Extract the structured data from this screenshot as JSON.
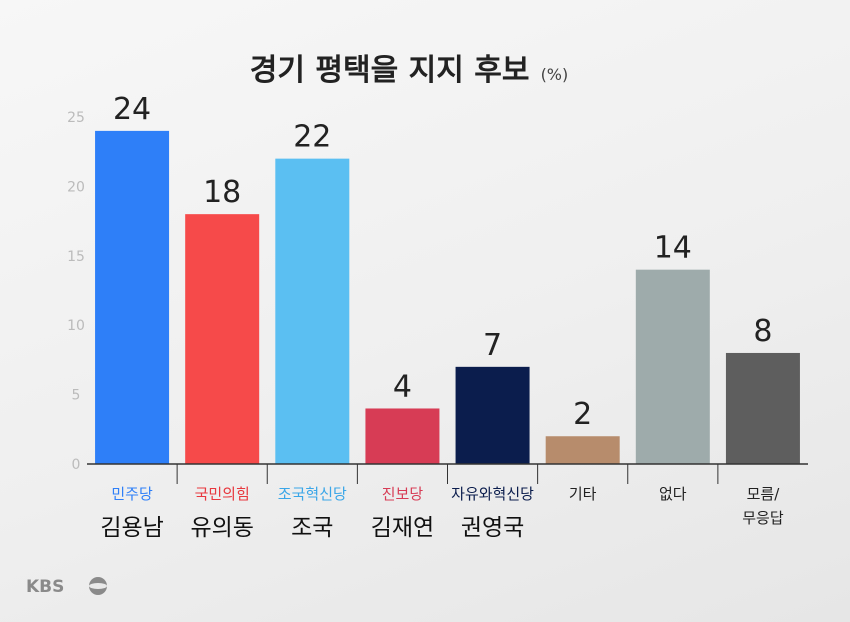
{
  "title": "경기 평택을 지지 후보",
  "unit": "(%)",
  "logo": "KBS",
  "chart_data": {
    "type": "bar",
    "ylim": [
      0,
      25
    ],
    "yticks": [
      0,
      5,
      10,
      15,
      20,
      25
    ],
    "grid": false,
    "categories": [
      {
        "party": "민주당",
        "candidate": "김용남",
        "value": 24,
        "color": "#2e7ff8",
        "party_color": "#2e7ff8"
      },
      {
        "party": "국민의힘",
        "candidate": "유의동",
        "value": 18,
        "color": "#f64a4a",
        "party_color": "#e8383e"
      },
      {
        "party": "조국혁신당",
        "candidate": "조국",
        "value": 22,
        "color": "#5bbff2",
        "party_color": "#3aa6e8"
      },
      {
        "party": "진보당",
        "candidate": "김재연",
        "value": 4,
        "color": "#d73c55",
        "party_color": "#d73c55"
      },
      {
        "party": "자유와혁신당",
        "candidate": "권영국",
        "value": 7,
        "color": "#0b1d4d",
        "party_color": "#0b1d4d"
      },
      {
        "party": "기타",
        "candidate": "",
        "value": 2,
        "color": "#b78c6c",
        "party_color": "#222222"
      },
      {
        "party": "없다",
        "candidate": "",
        "value": 14,
        "color": "#9eabab",
        "party_color": "#222222"
      },
      {
        "party": "모름/ 무응답",
        "candidate": "",
        "value": 8,
        "color": "#5e5e5e",
        "party_color": "#222222"
      }
    ]
  }
}
